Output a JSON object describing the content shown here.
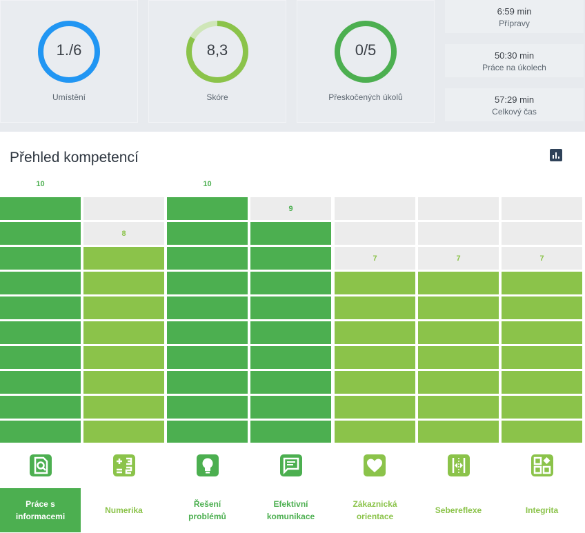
{
  "gauges": [
    {
      "value": "1./6",
      "label": "Umístění",
      "color": "#2196f3",
      "fraction": 1.0
    },
    {
      "value": "8,3",
      "label": "Skóre",
      "color": "#8bc34a",
      "fraction": 0.83
    },
    {
      "value": "0/5",
      "label": "Přeskočených úkolů",
      "color": "#4caf50",
      "fraction": 1.0
    }
  ],
  "times": [
    {
      "value": "6:59 min",
      "label": "Přípravy"
    },
    {
      "value": "50:30 min",
      "label": "Práce na úkolech"
    },
    {
      "value": "57:29 min",
      "label": "Celkový čas"
    }
  ],
  "overview": {
    "title": "Přehled kompetencí",
    "chart_icon": "bar-chart-icon",
    "max_score": 10,
    "colors": {
      "dark_green": "#4caf50",
      "light_green": "#8bc34a",
      "empty": "#ececec",
      "active_bg": "#4caf50"
    },
    "competencies": [
      {
        "score": 10,
        "score_label": "10",
        "name": "Práce s\ninformacemi",
        "icon": "search-document-icon",
        "color": "dark",
        "active": true
      },
      {
        "score": 8,
        "score_label": "8",
        "name": "Numerika",
        "icon": "calculator-icon",
        "color": "light",
        "active": false
      },
      {
        "score": 10,
        "score_label": "10",
        "name": "Řešení\nproblémů",
        "icon": "lightbulb-icon",
        "color": "dark",
        "active": false
      },
      {
        "score": 9,
        "score_label": "9",
        "name": "Efektivní\nkomunikace",
        "icon": "chat-icon",
        "color": "dark",
        "active": false
      },
      {
        "score": 7,
        "score_label": "7",
        "name": "Zákaznická\norientace",
        "icon": "heart-icon",
        "color": "light",
        "active": false
      },
      {
        "score": 7,
        "score_label": "7",
        "name": "Sebereflexe",
        "icon": "mirror-icon",
        "color": "light",
        "active": false
      },
      {
        "score": 7,
        "score_label": "7",
        "name": "Integrita",
        "icon": "puzzle-icon",
        "color": "light",
        "active": false
      }
    ]
  }
}
